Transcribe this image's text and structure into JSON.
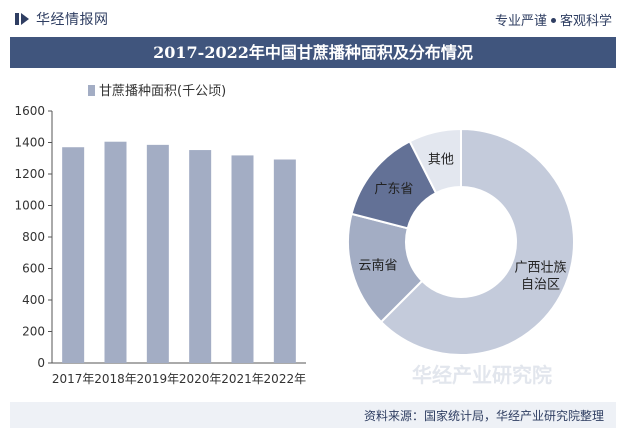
{
  "header": {
    "brand": "华经情报网",
    "tagline_left": "专业严谨",
    "tagline_right": "客观科学",
    "title": "2017-2022年中国甘蔗播种面积及分布情况"
  },
  "footer": {
    "source": "资料来源：国家统计局，华经产业研究院整理"
  },
  "watermark": "华经产业研究院",
  "colors": {
    "bar": "#a3adc4",
    "header_text": "#2f3e62",
    "title_bg": "#40557d"
  },
  "chart_data": [
    {
      "type": "bar",
      "series": [
        {
          "name": "甘蔗播种面积(千公顷)",
          "values": [
            1370,
            1405,
            1385,
            1352,
            1318,
            1292
          ]
        }
      ],
      "categories": [
        "2017年",
        "2018年",
        "2019年",
        "2020年",
        "2021年",
        "2022年"
      ],
      "ylim": [
        0,
        1600
      ],
      "yticks": [
        0,
        200,
        400,
        600,
        800,
        1000,
        1200,
        1400,
        1600
      ],
      "grid": false,
      "legend": "top-left"
    },
    {
      "type": "pie",
      "donut": true,
      "labels": [
        "广西壮族\n自治区",
        "云南省",
        "广东省",
        "其他"
      ],
      "values": [
        62.5,
        16.5,
        13.5,
        7.5
      ],
      "colors": [
        "#c4cbdb",
        "#a3adc4",
        "#637196",
        "#e3e7ef"
      ]
    }
  ]
}
